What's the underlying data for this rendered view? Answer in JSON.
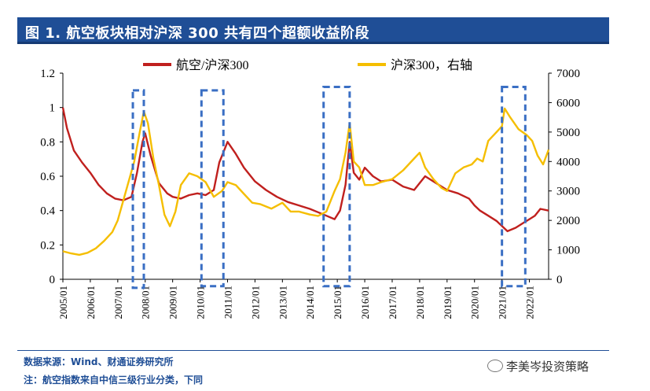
{
  "header": {
    "title": "图 1. 航空板块相对沪深 300 共有四个超额收益阶段"
  },
  "footer": {
    "source": "数据来源：Wind、财通证券研究所",
    "note": "注：航空指数来自中信三级行业分类，下同",
    "watermark": "李美岑投资策略"
  },
  "chart_data": {
    "type": "line",
    "title": "",
    "x_ticks": [
      "2005/01",
      "2006/01",
      "2007/01",
      "2008/01",
      "2009/01",
      "2010/01",
      "2011/01",
      "2012/01",
      "2013/01",
      "2014/01",
      "2015/01",
      "2016/01",
      "2017/01",
      "2018/01",
      "2019/01",
      "2020/01",
      "2021/01",
      "2022/01"
    ],
    "x_range": [
      2005.0,
      2022.7
    ],
    "y_left": {
      "range": [
        0,
        1.2
      ],
      "ticks": [
        "0",
        "0.2",
        "0.4",
        "0.6",
        "0.8",
        "1",
        "1.2"
      ],
      "tick_values": [
        0,
        0.2,
        0.4,
        0.6,
        0.8,
        1.0,
        1.2
      ]
    },
    "y_right": {
      "range": [
        0,
        7000
      ],
      "ticks": [
        "0",
        "1000",
        "2000",
        "3000",
        "4000",
        "5000",
        "6000",
        "7000"
      ],
      "tick_values": [
        0,
        1000,
        2000,
        3000,
        4000,
        5000,
        6000,
        7000
      ]
    },
    "colors": {
      "relative": "#c0201e",
      "index": "#f5be00",
      "box": "#3a6fc4",
      "title_bg": "#1f4e96"
    },
    "series": [
      {
        "name": "航空/沪深300",
        "axis": "left",
        "x": [
          2005.0,
          2005.15,
          2005.4,
          2005.7,
          2006.0,
          2006.3,
          2006.6,
          2006.9,
          2007.2,
          2007.5,
          2007.7,
          2007.9,
          2008.0,
          2008.2,
          2008.5,
          2008.8,
          2009.0,
          2009.3,
          2009.6,
          2009.9,
          2010.2,
          2010.5,
          2010.7,
          2010.85,
          2011.0,
          2011.3,
          2011.6,
          2012.0,
          2012.4,
          2012.8,
          2013.2,
          2013.6,
          2014.0,
          2014.3,
          2014.6,
          2014.9,
          2015.1,
          2015.3,
          2015.45,
          2015.6,
          2015.8,
          2016.0,
          2016.3,
          2016.6,
          2017.0,
          2017.4,
          2017.8,
          2018.0,
          2018.2,
          2018.5,
          2018.8,
          2019.0,
          2019.4,
          2019.8,
          2020.0,
          2020.2,
          2020.5,
          2020.8,
          2021.0,
          2021.2,
          2021.5,
          2021.8,
          2022.0,
          2022.2,
          2022.4,
          2022.7
        ],
        "values": [
          1.0,
          0.88,
          0.75,
          0.68,
          0.62,
          0.55,
          0.5,
          0.47,
          0.46,
          0.48,
          0.62,
          0.8,
          0.85,
          0.72,
          0.56,
          0.5,
          0.48,
          0.47,
          0.49,
          0.5,
          0.49,
          0.52,
          0.68,
          0.74,
          0.8,
          0.73,
          0.65,
          0.57,
          0.52,
          0.48,
          0.45,
          0.43,
          0.41,
          0.39,
          0.37,
          0.35,
          0.4,
          0.55,
          0.8,
          0.62,
          0.58,
          0.65,
          0.6,
          0.57,
          0.58,
          0.54,
          0.52,
          0.56,
          0.6,
          0.57,
          0.54,
          0.52,
          0.5,
          0.47,
          0.43,
          0.4,
          0.37,
          0.34,
          0.31,
          0.28,
          0.3,
          0.33,
          0.35,
          0.37,
          0.41,
          0.4
        ]
      },
      {
        "name": "沪深300，右轴",
        "axis": "right",
        "x": [
          2005.0,
          2005.3,
          2005.6,
          2005.9,
          2006.2,
          2006.5,
          2006.8,
          2007.0,
          2007.3,
          2007.6,
          2007.8,
          2007.95,
          2008.1,
          2008.3,
          2008.5,
          2008.7,
          2008.9,
          2009.1,
          2009.3,
          2009.6,
          2009.9,
          2010.2,
          2010.5,
          2010.8,
          2011.0,
          2011.3,
          2011.6,
          2011.9,
          2012.2,
          2012.6,
          2013.0,
          2013.3,
          2013.6,
          2014.0,
          2014.3,
          2014.6,
          2014.9,
          2015.1,
          2015.3,
          2015.45,
          2015.6,
          2015.8,
          2016.0,
          2016.3,
          2016.6,
          2017.0,
          2017.4,
          2017.8,
          2018.0,
          2018.2,
          2018.5,
          2018.8,
          2019.0,
          2019.3,
          2019.6,
          2019.9,
          2020.1,
          2020.3,
          2020.5,
          2020.8,
          2021.0,
          2021.1,
          2021.3,
          2021.6,
          2021.9,
          2022.1,
          2022.3,
          2022.5,
          2022.7
        ],
        "values": [
          950,
          880,
          830,
          900,
          1050,
          1300,
          1600,
          2000,
          3000,
          4000,
          5000,
          5700,
          5300,
          4100,
          3200,
          2200,
          1800,
          2300,
          3200,
          3600,
          3500,
          3300,
          2800,
          3000,
          3300,
          3200,
          2900,
          2600,
          2550,
          2400,
          2600,
          2300,
          2300,
          2200,
          2150,
          2300,
          3000,
          3400,
          4300,
          5300,
          4000,
          3800,
          3200,
          3200,
          3300,
          3400,
          3700,
          4100,
          4300,
          3800,
          3400,
          3100,
          3000,
          3600,
          3800,
          3900,
          4100,
          4000,
          4700,
          5000,
          5200,
          5800,
          5500,
          5100,
          4900,
          4700,
          4200,
          3900,
          4400
        ]
      }
    ],
    "boxes": [
      {
        "label": "period-1",
        "x0": 2007.55,
        "x1": 2007.95,
        "y0": 1.1,
        "y1": -0.05
      },
      {
        "label": "period-2",
        "x0": 2010.05,
        "x1": 2010.85,
        "y0": 1.1,
        "y1": -0.04
      },
      {
        "label": "period-3",
        "x0": 2014.5,
        "x1": 2015.45,
        "y0": 1.12,
        "y1": -0.04
      },
      {
        "label": "period-4",
        "x0": 2021.0,
        "x1": 2021.85,
        "y0": 1.12,
        "y1": -0.04
      }
    ]
  }
}
